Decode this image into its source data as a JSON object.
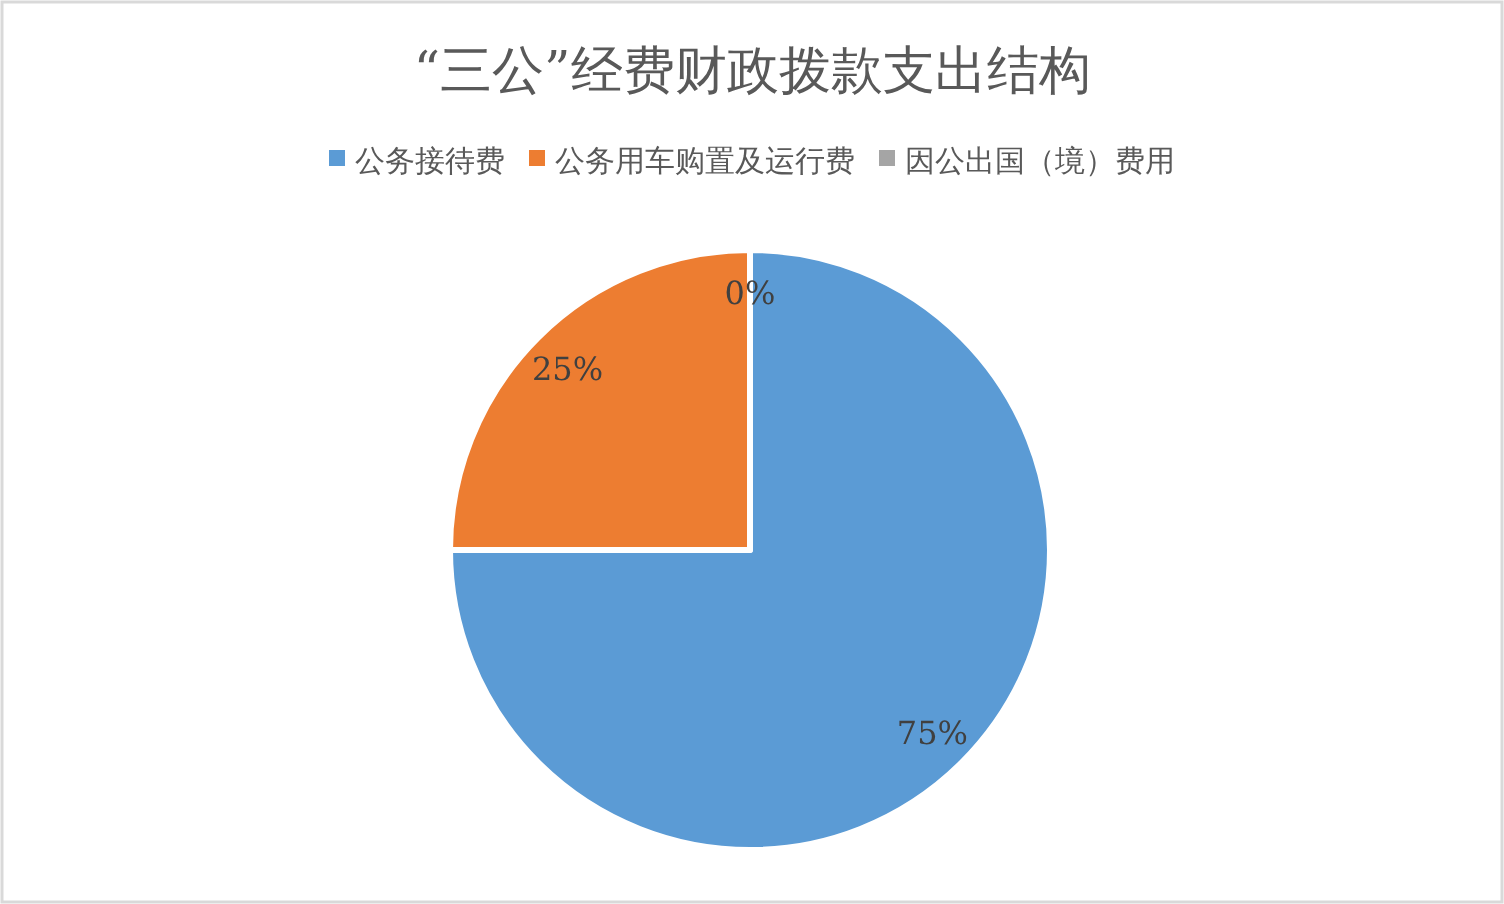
{
  "chart_data": {
    "type": "pie",
    "title": "“三公”经费财政拨款支出结构",
    "categories": [
      "公务接待费",
      "公务用车购置及运行费",
      "因公出国（境）费用"
    ],
    "values": [
      75,
      25,
      0
    ],
    "value_labels": [
      "75%",
      "25%",
      "0%"
    ],
    "colors": [
      "#5b9bd5",
      "#ed7d31",
      "#a5a5a5"
    ],
    "legend": "top"
  }
}
